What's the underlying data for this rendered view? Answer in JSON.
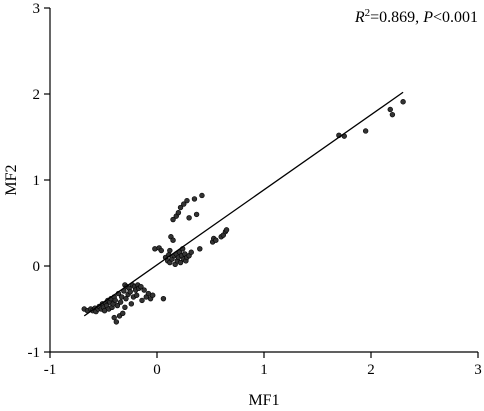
{
  "chart_data": {
    "type": "scatter",
    "title": "",
    "xlabel": "MF1",
    "ylabel": "MF2",
    "xlim": [
      -1,
      3
    ],
    "ylim": [
      -1,
      3
    ],
    "xticks": [
      -1,
      0,
      1,
      2,
      3
    ],
    "yticks": [
      -1,
      0,
      1,
      2,
      3
    ],
    "tick_labels_x": [
      "-1",
      "0",
      "1",
      "2",
      "3"
    ],
    "tick_labels_y": [
      "-1",
      "0",
      "1",
      "2",
      "3"
    ],
    "grid": false,
    "annotation": {
      "r": "R",
      "sup": "2",
      "r_value": "=0.869, ",
      "p": "P",
      "p_value": "<0.001"
    },
    "fit_line": {
      "x": [
        -0.68,
        2.3
      ],
      "y": [
        -0.58,
        2.02
      ]
    },
    "points": [
      [
        -0.68,
        -0.5
      ],
      [
        -0.65,
        -0.52
      ],
      [
        -0.62,
        -0.5
      ],
      [
        -0.6,
        -0.52
      ],
      [
        -0.58,
        -0.49
      ],
      [
        -0.57,
        -0.53
      ],
      [
        -0.55,
        -0.5
      ],
      [
        -0.54,
        -0.47
      ],
      [
        -0.52,
        -0.5
      ],
      [
        -0.51,
        -0.44
      ],
      [
        -0.5,
        -0.48
      ],
      [
        -0.49,
        -0.52
      ],
      [
        -0.48,
        -0.43
      ],
      [
        -0.47,
        -0.46
      ],
      [
        -0.46,
        -0.4
      ],
      [
        -0.45,
        -0.5
      ],
      [
        -0.44,
        -0.42
      ],
      [
        -0.43,
        -0.38
      ],
      [
        -0.42,
        -0.48
      ],
      [
        -0.41,
        -0.44
      ],
      [
        -0.4,
        -0.36
      ],
      [
        -0.4,
        -0.6
      ],
      [
        -0.39,
        -0.4
      ],
      [
        -0.38,
        -0.65
      ],
      [
        -0.37,
        -0.46
      ],
      [
        -0.36,
        -0.32
      ],
      [
        -0.35,
        -0.58
      ],
      [
        -0.34,
        -0.42
      ],
      [
        -0.33,
        -0.36
      ],
      [
        -0.32,
        -0.55
      ],
      [
        -0.31,
        -0.29
      ],
      [
        -0.3,
        -0.48
      ],
      [
        -0.3,
        -0.22
      ],
      [
        -0.29,
        -0.38
      ],
      [
        -0.28,
        -0.24
      ],
      [
        -0.27,
        -0.33
      ],
      [
        -0.26,
        -0.26
      ],
      [
        -0.25,
        -0.3
      ],
      [
        -0.24,
        -0.44
      ],
      [
        -0.23,
        -0.22
      ],
      [
        -0.22,
        -0.36
      ],
      [
        -0.21,
        -0.24
      ],
      [
        -0.2,
        -0.28
      ],
      [
        -0.19,
        -0.34
      ],
      [
        -0.18,
        -0.22
      ],
      [
        -0.17,
        -0.26
      ],
      [
        -0.15,
        -0.24
      ],
      [
        -0.14,
        -0.4
      ],
      [
        -0.12,
        -0.28
      ],
      [
        -0.1,
        -0.36
      ],
      [
        -0.08,
        -0.32
      ],
      [
        -0.06,
        -0.38
      ],
      [
        -0.04,
        -0.34
      ],
      [
        0.06,
        -0.38
      ],
      [
        -0.02,
        0.2
      ],
      [
        0.02,
        0.21
      ],
      [
        0.04,
        0.18
      ],
      [
        0.08,
        0.1
      ],
      [
        0.1,
        0.06
      ],
      [
        0.11,
        0.13
      ],
      [
        0.12,
        0.18
      ],
      [
        0.12,
        0.04
      ],
      [
        0.13,
        0.34
      ],
      [
        0.14,
        0.08
      ],
      [
        0.15,
        0.54
      ],
      [
        0.15,
        0.3
      ],
      [
        0.16,
        0.12
      ],
      [
        0.17,
        0.02
      ],
      [
        0.18,
        0.58
      ],
      [
        0.18,
        0.14
      ],
      [
        0.19,
        0.06
      ],
      [
        0.2,
        0.62
      ],
      [
        0.2,
        0.1
      ],
      [
        0.21,
        0.16
      ],
      [
        0.22,
        0.68
      ],
      [
        0.22,
        0.04
      ],
      [
        0.23,
        0.12
      ],
      [
        0.24,
        0.2
      ],
      [
        0.25,
        0.72
      ],
      [
        0.25,
        0.08
      ],
      [
        0.26,
        0.14
      ],
      [
        0.27,
        0.06
      ],
      [
        0.28,
        0.76
      ],
      [
        0.28,
        0.1
      ],
      [
        0.3,
        0.56
      ],
      [
        0.3,
        0.12
      ],
      [
        0.32,
        0.16
      ],
      [
        0.35,
        0.78
      ],
      [
        0.37,
        0.6
      ],
      [
        0.4,
        0.2
      ],
      [
        0.42,
        0.82
      ],
      [
        0.52,
        0.28
      ],
      [
        0.53,
        0.32
      ],
      [
        0.55,
        0.3
      ],
      [
        0.6,
        0.34
      ],
      [
        0.62,
        0.36
      ],
      [
        0.64,
        0.4
      ],
      [
        0.65,
        0.42
      ],
      [
        1.7,
        1.52
      ],
      [
        1.75,
        1.51
      ],
      [
        1.95,
        1.57
      ],
      [
        2.18,
        1.82
      ],
      [
        2.2,
        1.76
      ],
      [
        2.3,
        1.91
      ]
    ]
  }
}
